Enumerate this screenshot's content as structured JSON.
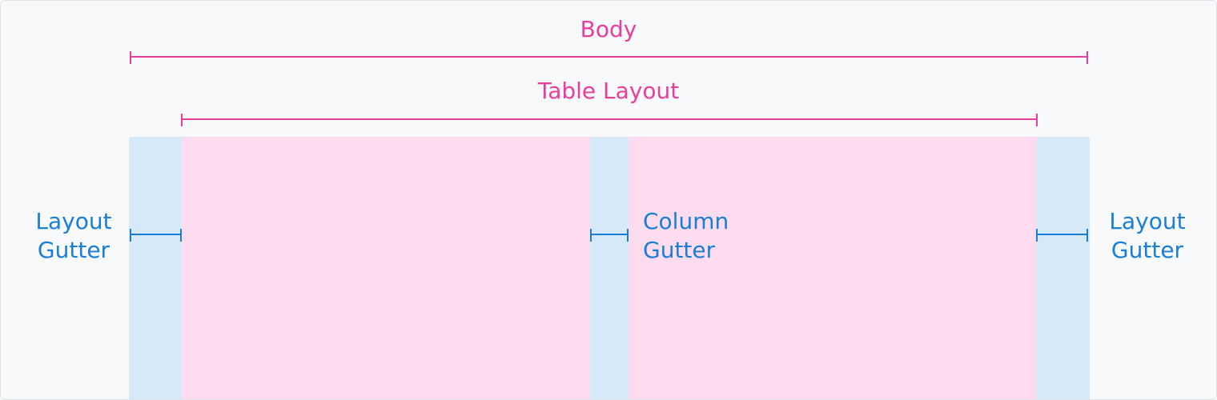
{
  "labels": {
    "body": "Body",
    "table_layout": "Table Layout",
    "layout_gutter_left": "Layout\nGutter",
    "column_gutter": "Column\nGutter",
    "layout_gutter_right": "Layout\nGutter"
  },
  "colors": {
    "pink": "#e83e9c",
    "blue": "#1a7fd4",
    "gutter_fill": "#d6e9f8",
    "column_fill": "#fcdcee",
    "background": "#f7f9fb"
  }
}
